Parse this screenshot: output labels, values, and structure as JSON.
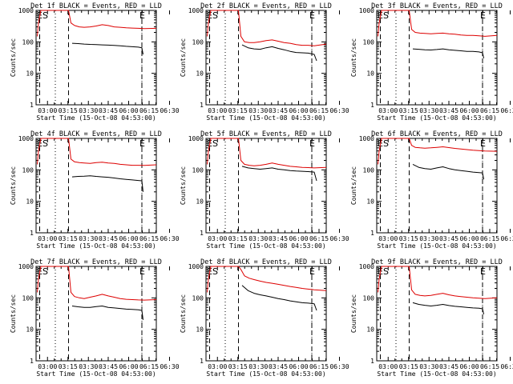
{
  "figure": {
    "x_tick_labels": [
      "03:00",
      "03:15",
      "03:30",
      "03:45",
      "06:00",
      "06:15",
      "06:30"
    ],
    "x_label": "Start Time (15-Oct-08 04:53:00)",
    "y_label": "Counts/sec",
    "y_tick_labels": [
      "1",
      "10",
      "100",
      "1000"
    ],
    "marker_start": "ES",
    "marker_end": "E",
    "series_colors": {
      "events": "#000000",
      "lld": "#dd0000"
    },
    "series_names": {
      "events": "Events",
      "lld": "LLD"
    }
  },
  "chart_data": [
    {
      "type": "line",
      "title": "Det 1f BLACK = Events, RED = LLD",
      "xlabel": "Start Time (15-Oct-08 04:53:00)",
      "ylabel": "Counts/sec",
      "yscale": "log",
      "ylim": [
        1,
        1000
      ],
      "xlim": [
        0,
        100
      ],
      "x_tick_values": [
        9.5,
        26.5,
        43.5,
        60,
        77,
        94,
        111
      ],
      "x_tick_labels": [
        "03:00",
        "03:15",
        "03:30",
        "03:45",
        "06:00",
        "06:15",
        "06:30"
      ],
      "dashed_lines_x": [
        3,
        27,
        88
      ],
      "dotted_lines_x": [
        16,
        88
      ],
      "series": [
        {
          "name": "Events",
          "color": "#000000",
          "x": [
            30,
            35,
            40,
            45,
            50,
            55,
            60,
            65,
            70,
            75,
            80,
            85,
            88,
            89
          ],
          "y": [
            90,
            88,
            85,
            83,
            82,
            80,
            79,
            77,
            75,
            72,
            70,
            68,
            65,
            40
          ]
        },
        {
          "name": "LLD",
          "color": "#dd0000",
          "x": [
            1,
            2,
            4,
            6,
            8,
            9,
            27,
            29,
            32,
            36,
            40,
            45,
            50,
            55,
            60,
            65,
            70,
            75,
            80,
            85,
            90,
            100
          ],
          "y": [
            150,
            400,
            1000,
            1000,
            1000,
            1000,
            1000,
            400,
            330,
            300,
            290,
            300,
            320,
            350,
            330,
            300,
            290,
            280,
            275,
            270,
            265,
            270
          ]
        }
      ]
    },
    {
      "type": "line",
      "title": "Det 2f BLACK = Events, RED = LLD",
      "xlabel": "Start Time (15-Oct-08 04:53:00)",
      "ylabel": "Counts/sec",
      "yscale": "log",
      "ylim": [
        1,
        1000
      ],
      "xlim": [
        0,
        100
      ],
      "x_tick_values": [
        9.5,
        26.5,
        43.5,
        60,
        77,
        94,
        111
      ],
      "x_tick_labels": [
        "03:00",
        "03:15",
        "03:30",
        "03:45",
        "06:00",
        "06:15",
        "06:30"
      ],
      "dashed_lines_x": [
        3,
        27,
        88
      ],
      "dotted_lines_x": [
        16,
        88
      ],
      "series": [
        {
          "name": "Events",
          "color": "#000000",
          "x": [
            30,
            35,
            40,
            45,
            50,
            55,
            60,
            65,
            70,
            75,
            80,
            85,
            90,
            92
          ],
          "y": [
            80,
            65,
            60,
            58,
            65,
            70,
            62,
            56,
            50,
            46,
            45,
            44,
            40,
            25
          ]
        },
        {
          "name": "LLD",
          "color": "#dd0000",
          "x": [
            1,
            2,
            4,
            6,
            8,
            9,
            27,
            29,
            32,
            36,
            40,
            45,
            50,
            55,
            60,
            65,
            70,
            75,
            80,
            85,
            90,
            100
          ],
          "y": [
            150,
            400,
            1000,
            1000,
            1000,
            1000,
            1000,
            150,
            100,
            95,
            95,
            100,
            110,
            115,
            105,
            95,
            90,
            82,
            78,
            78,
            75,
            85
          ]
        }
      ]
    },
    {
      "type": "line",
      "title": "Det 3f BLACK = Events, RED = LLD",
      "xlabel": "Start Time (15-Oct-08 04:53:00)",
      "ylabel": "Counts/sec",
      "yscale": "log",
      "ylim": [
        1,
        1000
      ],
      "xlim": [
        0,
        100
      ],
      "x_tick_values": [
        9.5,
        26.5,
        43.5,
        60,
        77,
        94,
        111
      ],
      "x_tick_labels": [
        "03:00",
        "03:15",
        "03:30",
        "03:45",
        "06:00",
        "06:15",
        "06:30"
      ],
      "dashed_lines_x": [
        3,
        27,
        88
      ],
      "dotted_lines_x": [
        16,
        88
      ],
      "series": [
        {
          "name": "Events",
          "color": "#000000",
          "x": [
            30,
            35,
            40,
            45,
            50,
            55,
            60,
            65,
            70,
            75,
            80,
            85,
            88,
            89
          ],
          "y": [
            60,
            58,
            56,
            55,
            57,
            60,
            56,
            54,
            52,
            50,
            50,
            48,
            45,
            30
          ]
        },
        {
          "name": "LLD",
          "color": "#dd0000",
          "x": [
            1,
            2,
            4,
            6,
            8,
            9,
            27,
            29,
            32,
            36,
            40,
            45,
            50,
            55,
            60,
            65,
            70,
            75,
            80,
            85,
            90,
            100
          ],
          "y": [
            150,
            400,
            1000,
            1000,
            1000,
            1000,
            1000,
            250,
            200,
            190,
            185,
            180,
            185,
            190,
            180,
            175,
            165,
            160,
            160,
            155,
            150,
            160
          ]
        }
      ]
    },
    {
      "type": "line",
      "title": "Det 4f BLACK = Events, RED = LLD",
      "xlabel": "Start Time (15-Oct-08 04:53:00)",
      "ylabel": "Counts/sec",
      "yscale": "log",
      "ylim": [
        1,
        1000
      ],
      "xlim": [
        0,
        100
      ],
      "x_tick_values": [
        9.5,
        26.5,
        43.5,
        60,
        77,
        94,
        111
      ],
      "x_tick_labels": [
        "03:00",
        "03:15",
        "03:30",
        "03:45",
        "06:00",
        "06:15",
        "06:30"
      ],
      "dashed_lines_x": [
        3,
        27,
        88
      ],
      "dotted_lines_x": [
        16,
        88
      ],
      "series": [
        {
          "name": "Events",
          "color": "#000000",
          "x": [
            30,
            35,
            40,
            45,
            50,
            55,
            60,
            65,
            70,
            75,
            80,
            85,
            88,
            89
          ],
          "y": [
            60,
            62,
            63,
            65,
            62,
            60,
            58,
            55,
            52,
            50,
            48,
            46,
            45,
            20
          ]
        },
        {
          "name": "LLD",
          "color": "#dd0000",
          "x": [
            1,
            2,
            4,
            6,
            8,
            9,
            27,
            29,
            32,
            36,
            40,
            45,
            50,
            55,
            60,
            65,
            70,
            75,
            80,
            85,
            90,
            100
          ],
          "y": [
            150,
            400,
            1000,
            1000,
            1000,
            1000,
            1000,
            220,
            180,
            170,
            165,
            160,
            170,
            175,
            165,
            160,
            150,
            145,
            140,
            140,
            138,
            145
          ]
        }
      ]
    },
    {
      "type": "line",
      "title": "Det 5f BLACK = Events, RED = LLD",
      "xlabel": "Start Time (15-Oct-08 04:53:00)",
      "ylabel": "Counts/sec",
      "yscale": "log",
      "ylim": [
        1,
        1000
      ],
      "xlim": [
        0,
        100
      ],
      "x_tick_values": [
        9.5,
        26.5,
        43.5,
        60,
        77,
        94,
        111
      ],
      "x_tick_labels": [
        "03:00",
        "03:15",
        "03:30",
        "03:45",
        "06:00",
        "06:15",
        "06:30"
      ],
      "dashed_lines_x": [
        3,
        27,
        88
      ],
      "dotted_lines_x": [
        16,
        88
      ],
      "series": [
        {
          "name": "Events",
          "color": "#000000",
          "x": [
            30,
            35,
            40,
            45,
            50,
            55,
            60,
            65,
            70,
            75,
            80,
            85,
            90,
            92
          ],
          "y": [
            130,
            115,
            110,
            105,
            110,
            115,
            105,
            100,
            95,
            92,
            90,
            88,
            85,
            45
          ]
        },
        {
          "name": "LLD",
          "color": "#dd0000",
          "x": [
            1,
            2,
            4,
            6,
            8,
            9,
            27,
            29,
            32,
            36,
            40,
            45,
            50,
            55,
            60,
            65,
            70,
            75,
            80,
            85,
            90,
            100
          ],
          "y": [
            150,
            400,
            1000,
            1000,
            1000,
            1000,
            1000,
            200,
            150,
            140,
            135,
            140,
            150,
            165,
            150,
            140,
            130,
            125,
            120,
            118,
            115,
            120
          ]
        }
      ]
    },
    {
      "type": "line",
      "title": "Det 6f BLACK = Events, RED = LLD",
      "xlabel": "Start Time (15-Oct-08 04:53:00)",
      "ylabel": "Counts/sec",
      "yscale": "log",
      "ylim": [
        1,
        1000
      ],
      "xlim": [
        0,
        100
      ],
      "x_tick_values": [
        9.5,
        26.5,
        43.5,
        60,
        77,
        94,
        111
      ],
      "x_tick_labels": [
        "03:00",
        "03:15",
        "03:30",
        "03:45",
        "06:00",
        "06:15",
        "06:30"
      ],
      "dashed_lines_x": [
        3,
        27,
        88
      ],
      "dotted_lines_x": [
        16,
        88
      ],
      "series": [
        {
          "name": "Events",
          "color": "#000000",
          "x": [
            30,
            35,
            40,
            45,
            50,
            55,
            60,
            65,
            70,
            75,
            80,
            85,
            88,
            89
          ],
          "y": [
            150,
            120,
            110,
            105,
            115,
            125,
            110,
            100,
            95,
            90,
            85,
            82,
            80,
            50
          ]
        },
        {
          "name": "LLD",
          "color": "#dd0000",
          "x": [
            1,
            2,
            4,
            6,
            8,
            9,
            27,
            29,
            32,
            36,
            40,
            45,
            50,
            55,
            60,
            65,
            70,
            75,
            80,
            85,
            90,
            100
          ],
          "y": [
            150,
            400,
            1000,
            1000,
            1000,
            1000,
            1000,
            600,
            520,
            500,
            490,
            500,
            520,
            540,
            510,
            480,
            460,
            440,
            420,
            410,
            400,
            390
          ]
        }
      ]
    },
    {
      "type": "line",
      "title": "Det 7f BLACK = Events, RED = LLD",
      "xlabel": "Start Time (15-Oct-08 04:53:00)",
      "ylabel": "Counts/sec",
      "yscale": "log",
      "ylim": [
        1,
        1000
      ],
      "xlim": [
        0,
        100
      ],
      "x_tick_values": [
        9.5,
        26.5,
        43.5,
        60,
        77,
        94,
        111
      ],
      "x_tick_labels": [
        "03:00",
        "03:15",
        "03:30",
        "03:45",
        "06:00",
        "06:15",
        "06:30"
      ],
      "dashed_lines_x": [
        3,
        27,
        88
      ],
      "dotted_lines_x": [
        16,
        88
      ],
      "series": [
        {
          "name": "Events",
          "color": "#000000",
          "x": [
            30,
            35,
            40,
            45,
            50,
            55,
            60,
            65,
            70,
            75,
            80,
            85,
            88,
            89
          ],
          "y": [
            55,
            52,
            50,
            50,
            53,
            55,
            50,
            48,
            46,
            44,
            43,
            42,
            40,
            20
          ]
        },
        {
          "name": "LLD",
          "color": "#dd0000",
          "x": [
            1,
            2,
            4,
            6,
            8,
            9,
            27,
            29,
            32,
            36,
            40,
            45,
            50,
            55,
            60,
            65,
            70,
            75,
            80,
            85,
            90,
            100
          ],
          "y": [
            150,
            400,
            1000,
            1000,
            1000,
            1000,
            1000,
            150,
            110,
            100,
            95,
            105,
            115,
            130,
            115,
            105,
            95,
            90,
            88,
            86,
            85,
            88
          ]
        }
      ]
    },
    {
      "type": "line",
      "title": "Det 8f BLACK = Events, RED = LLD",
      "xlabel": "Start Time (15-Oct-08 04:53:00)",
      "ylabel": "Counts/sec",
      "yscale": "log",
      "ylim": [
        1,
        1000
      ],
      "xlim": [
        0,
        100
      ],
      "x_tick_values": [
        9.5,
        26.5,
        43.5,
        60,
        77,
        94,
        111
      ],
      "x_tick_labels": [
        "03:00",
        "03:15",
        "03:30",
        "03:45",
        "06:00",
        "06:15",
        "06:30"
      ],
      "dashed_lines_x": [
        3,
        27,
        88
      ],
      "dotted_lines_x": [
        16,
        88
      ],
      "series": [
        {
          "name": "Events",
          "color": "#000000",
          "x": [
            30,
            35,
            40,
            45,
            50,
            55,
            60,
            65,
            70,
            75,
            80,
            85,
            90,
            92
          ],
          "y": [
            250,
            170,
            140,
            125,
            115,
            105,
            95,
            88,
            80,
            75,
            70,
            68,
            65,
            40
          ]
        },
        {
          "name": "LLD",
          "color": "#dd0000",
          "x": [
            1,
            2,
            4,
            6,
            8,
            9,
            27,
            29,
            32,
            36,
            40,
            45,
            50,
            55,
            60,
            65,
            70,
            75,
            80,
            85,
            90,
            100
          ],
          "y": [
            150,
            400,
            1000,
            1000,
            1000,
            1000,
            1000,
            800,
            500,
            420,
            380,
            340,
            310,
            290,
            270,
            250,
            230,
            215,
            200,
            190,
            180,
            170
          ]
        }
      ]
    },
    {
      "type": "line",
      "title": "Det 9f BLACK = Events, RED = LLD",
      "xlabel": "Start Time (15-Oct-08 04:53:00)",
      "ylabel": "Counts/sec",
      "yscale": "log",
      "ylim": [
        1,
        1000
      ],
      "xlim": [
        0,
        100
      ],
      "x_tick_values": [
        9.5,
        26.5,
        43.5,
        60,
        77,
        94,
        111
      ],
      "x_tick_labels": [
        "03:00",
        "03:15",
        "03:30",
        "03:45",
        "06:00",
        "06:15",
        "06:30"
      ],
      "dashed_lines_x": [
        3,
        27,
        88
      ],
      "dotted_lines_x": [
        16,
        88
      ],
      "series": [
        {
          "name": "Events",
          "color": "#000000",
          "x": [
            30,
            35,
            40,
            45,
            50,
            55,
            60,
            65,
            70,
            75,
            80,
            85,
            88,
            89
          ],
          "y": [
            70,
            62,
            58,
            55,
            58,
            62,
            57,
            54,
            52,
            50,
            48,
            47,
            45,
            30
          ]
        },
        {
          "name": "LLD",
          "color": "#dd0000",
          "x": [
            1,
            2,
            4,
            6,
            8,
            9,
            27,
            29,
            32,
            36,
            40,
            45,
            50,
            55,
            60,
            65,
            70,
            75,
            80,
            85,
            90,
            100
          ],
          "y": [
            150,
            400,
            1000,
            1000,
            1000,
            1000,
            1000,
            180,
            130,
            120,
            115,
            120,
            130,
            140,
            125,
            115,
            110,
            105,
            100,
            98,
            95,
            100
          ]
        }
      ]
    }
  ]
}
